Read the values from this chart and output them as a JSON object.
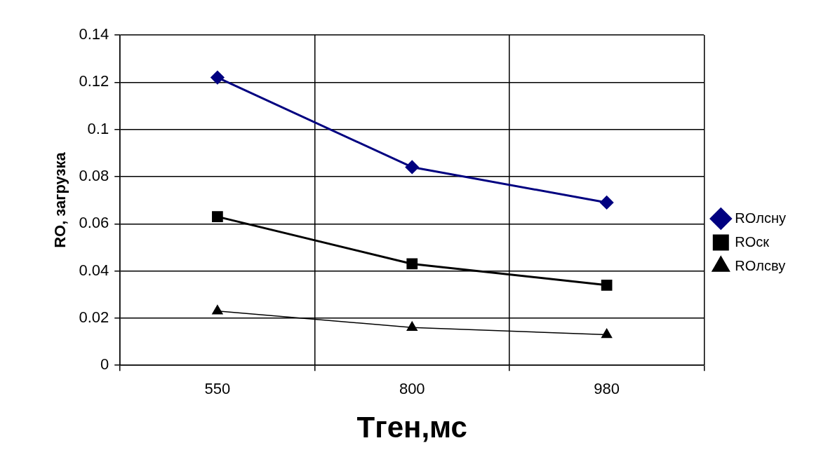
{
  "chart_data": {
    "type": "line",
    "xlabel": "Tген,мс",
    "ylabel": "RO, загрузка",
    "categories": [
      "550",
      "800",
      "980"
    ],
    "series": [
      {
        "name": "ROлсну",
        "color": "#000080",
        "values": [
          0.122,
          0.084,
          0.069
        ],
        "marker": "diamond"
      },
      {
        "name": "ROск",
        "color": "#000000",
        "values": [
          0.063,
          0.043,
          0.034
        ],
        "marker": "square"
      },
      {
        "name": "ROлсву",
        "color": "#000000",
        "values": [
          0.023,
          0.016,
          0.013
        ],
        "marker": "triangle"
      }
    ],
    "ylim": [
      0,
      0.14
    ],
    "yticks": [
      0,
      0.02,
      0.04,
      0.06,
      0.08,
      0.1,
      0.12,
      0.14
    ],
    "grid": true,
    "legend": "right"
  }
}
